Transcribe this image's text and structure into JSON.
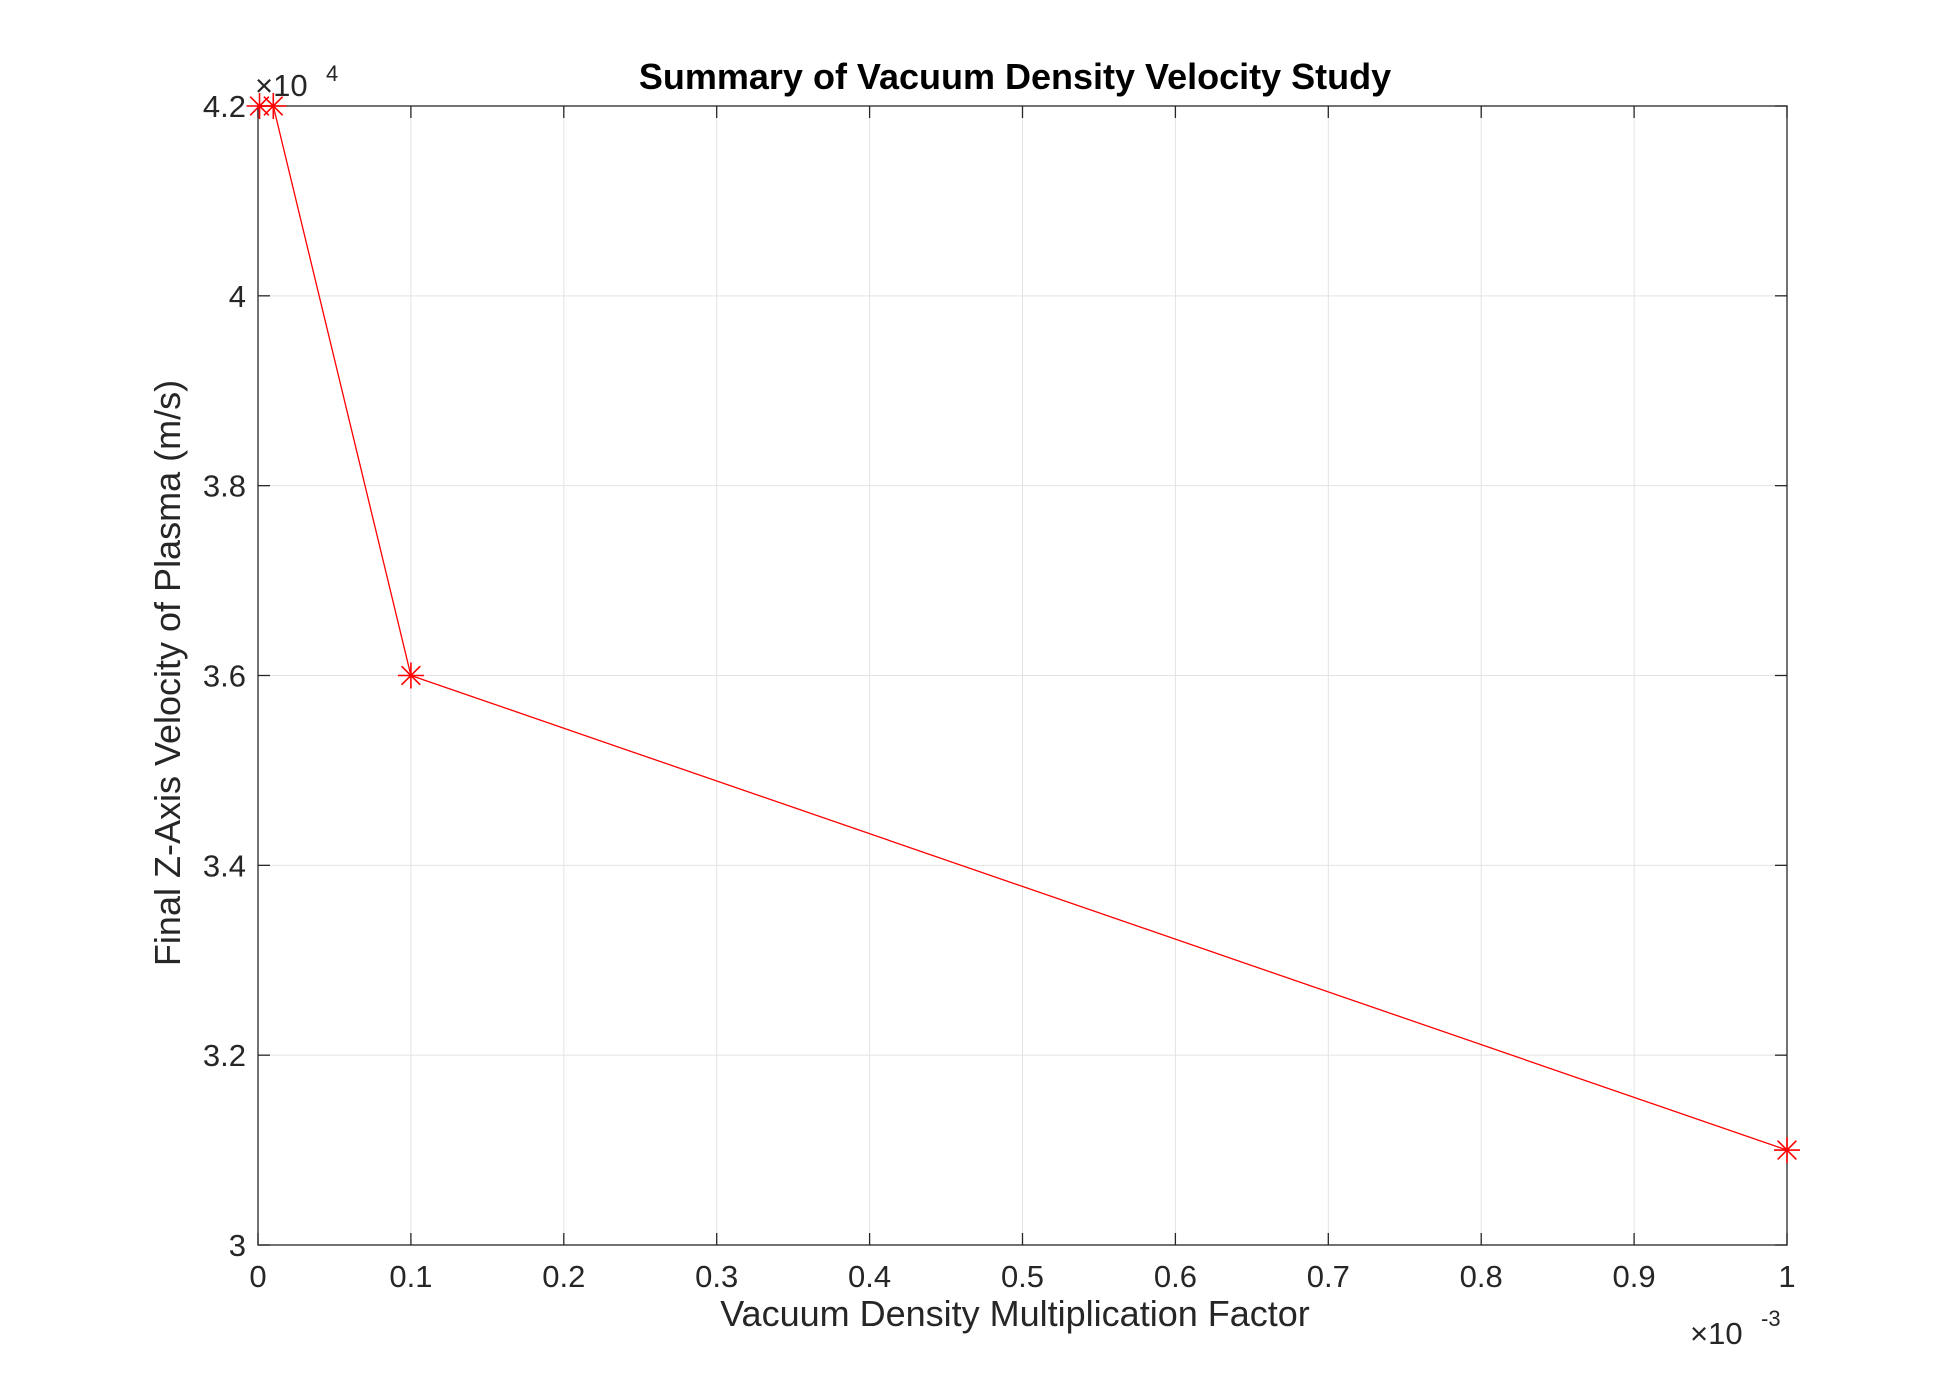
{
  "chart_data": {
    "type": "line",
    "title": "Summary of Vacuum Density Velocity Study",
    "xlabel": "Vacuum Density Multiplication Factor",
    "ylabel": "Final Z-Axis Velocity of Plasma (m/s)",
    "x_multiplier": {
      "base": "×10",
      "exponent": "-3"
    },
    "y_multiplier": {
      "base": "×10",
      "exponent": "4"
    },
    "xlim": [
      0,
      0.001
    ],
    "ylim": [
      30000,
      42000
    ],
    "x_ticks": [
      0,
      0.0001,
      0.0002,
      0.0003,
      0.0004,
      0.0005,
      0.0006,
      0.0007,
      0.0008,
      0.0009,
      0.001
    ],
    "x_tick_labels": [
      "0",
      "0.1",
      "0.2",
      "0.3",
      "0.4",
      "0.5",
      "0.6",
      "0.7",
      "0.8",
      "0.9",
      "1"
    ],
    "y_ticks": [
      30000,
      32000,
      34000,
      36000,
      38000,
      40000,
      42000
    ],
    "y_tick_labels": [
      "3",
      "3.2",
      "3.4",
      "3.6",
      "3.8",
      "4",
      "4.2"
    ],
    "grid": true,
    "series": [
      {
        "color": "#ff0000",
        "marker": "asterisk",
        "x": [
          1e-06,
          1e-05,
          0.0001,
          0.001
        ],
        "y": [
          42000,
          42000,
          36000,
          31000
        ]
      }
    ]
  }
}
